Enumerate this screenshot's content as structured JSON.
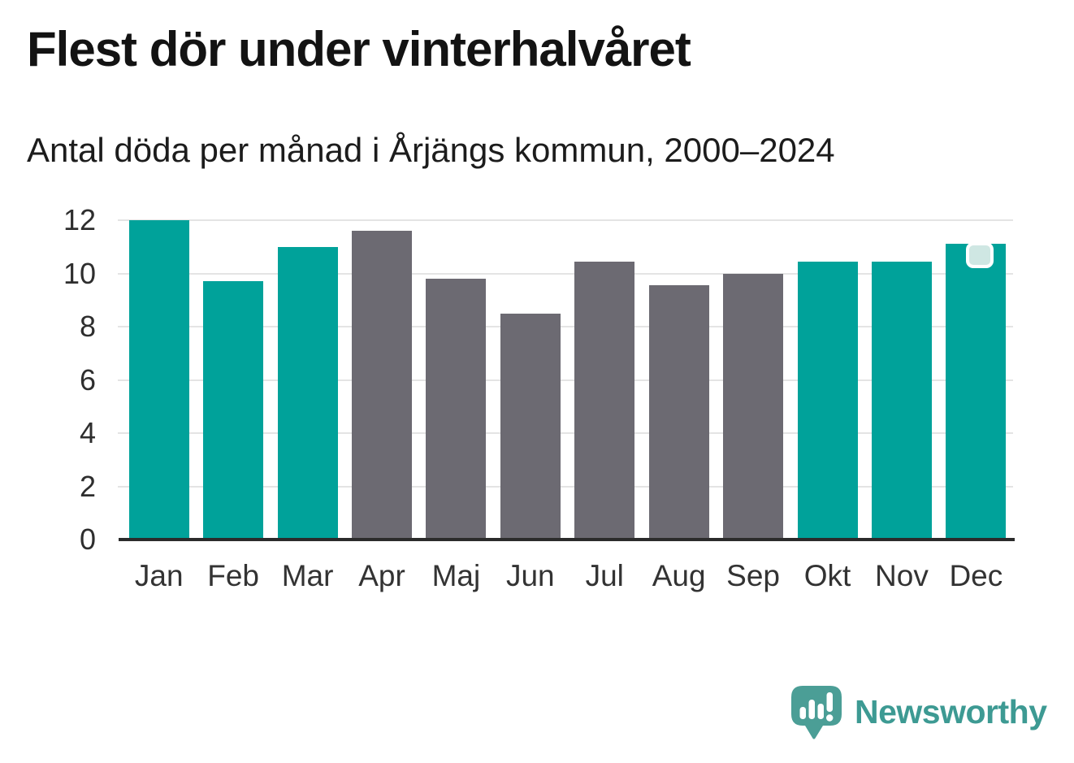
{
  "header": {
    "title": "Flest dör under vinterhalvåret",
    "subtitle": "Antal döda per månad i Årjängs kommun, 2000–2024"
  },
  "chart_data": {
    "type": "bar",
    "title": "Flest dör under vinterhalvåret",
    "subtitle": "Antal döda per månad i Årjängs kommun, 2000–2024",
    "categories": [
      "Jan",
      "Feb",
      "Mar",
      "Apr",
      "Maj",
      "Jun",
      "Jul",
      "Aug",
      "Sep",
      "Okt",
      "Nov",
      "Dec"
    ],
    "values": [
      12.0,
      9.7,
      11.0,
      11.6,
      9.8,
      8.5,
      10.45,
      9.55,
      10.0,
      10.45,
      10.45,
      11.1
    ],
    "highlighted": [
      true,
      true,
      true,
      false,
      false,
      false,
      false,
      false,
      false,
      true,
      true,
      true
    ],
    "colors": {
      "highlight": "#00a29a",
      "base": "#6c6a72",
      "gridline": "#e4e4e4",
      "axis": "#2b2b2b"
    },
    "xlabel": "",
    "ylabel": "",
    "ylim": [
      0,
      12
    ],
    "yticks": [
      0,
      2,
      4,
      6,
      8,
      10,
      12
    ],
    "grid": "horizontal",
    "legend": "none",
    "overlay_handle": {
      "month": "Dec"
    }
  },
  "footer": {
    "logo_text": "Newsworthy",
    "logo_color": "#3d9a93"
  }
}
